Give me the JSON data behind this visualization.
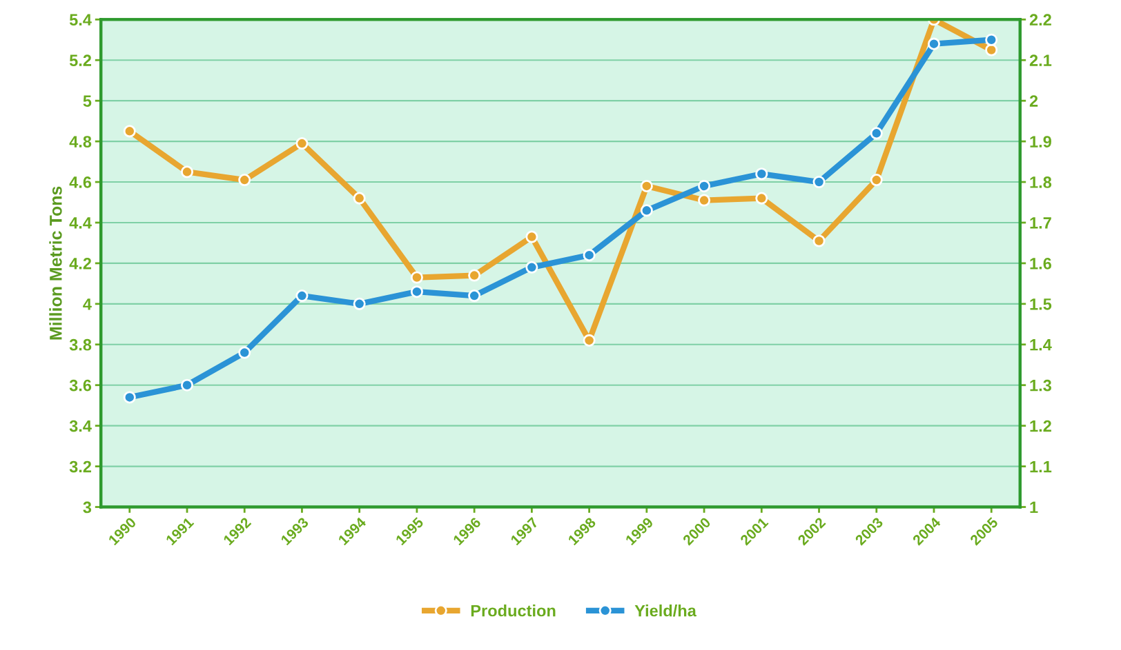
{
  "chart_data": {
    "type": "line",
    "ylabel": "Million Metric Tons",
    "categories": [
      "1990",
      "1991",
      "1992",
      "1993",
      "1994",
      "1995",
      "1996",
      "1997",
      "1998",
      "1999",
      "2000",
      "2001",
      "2002",
      "2003",
      "2004",
      "2005"
    ],
    "series": [
      {
        "name": "Production",
        "color": "#e8a630",
        "values": [
          4.85,
          4.65,
          4.61,
          4.79,
          4.52,
          4.13,
          4.14,
          4.33,
          3.82,
          4.58,
          4.51,
          4.52,
          4.31,
          4.61,
          5.4,
          5.25
        ]
      },
      {
        "name": "Yield/ha",
        "color": "#2b93d6",
        "axis": "y2",
        "values": [
          1.27,
          1.3,
          1.38,
          1.52,
          1.5,
          1.53,
          1.52,
          1.59,
          1.62,
          1.73,
          1.79,
          1.82,
          1.8,
          1.92,
          2.14,
          2.15
        ]
      }
    ],
    "ylim": [
      3,
      5.4
    ],
    "yticks": [
      3,
      3.2,
      3.4,
      3.6,
      3.8,
      4,
      4.2,
      4.4,
      4.6,
      4.8,
      5,
      5.2,
      5.4
    ],
    "y2lim": [
      1,
      2.2
    ],
    "y2ticks": [
      1,
      1.1,
      1.2,
      1.3,
      1.4,
      1.5,
      1.6,
      1.7,
      1.8,
      1.9,
      2,
      2.1,
      2.2
    ],
    "grid": "y",
    "legend": "bottom",
    "marker": "circle",
    "line_style": "solid"
  }
}
